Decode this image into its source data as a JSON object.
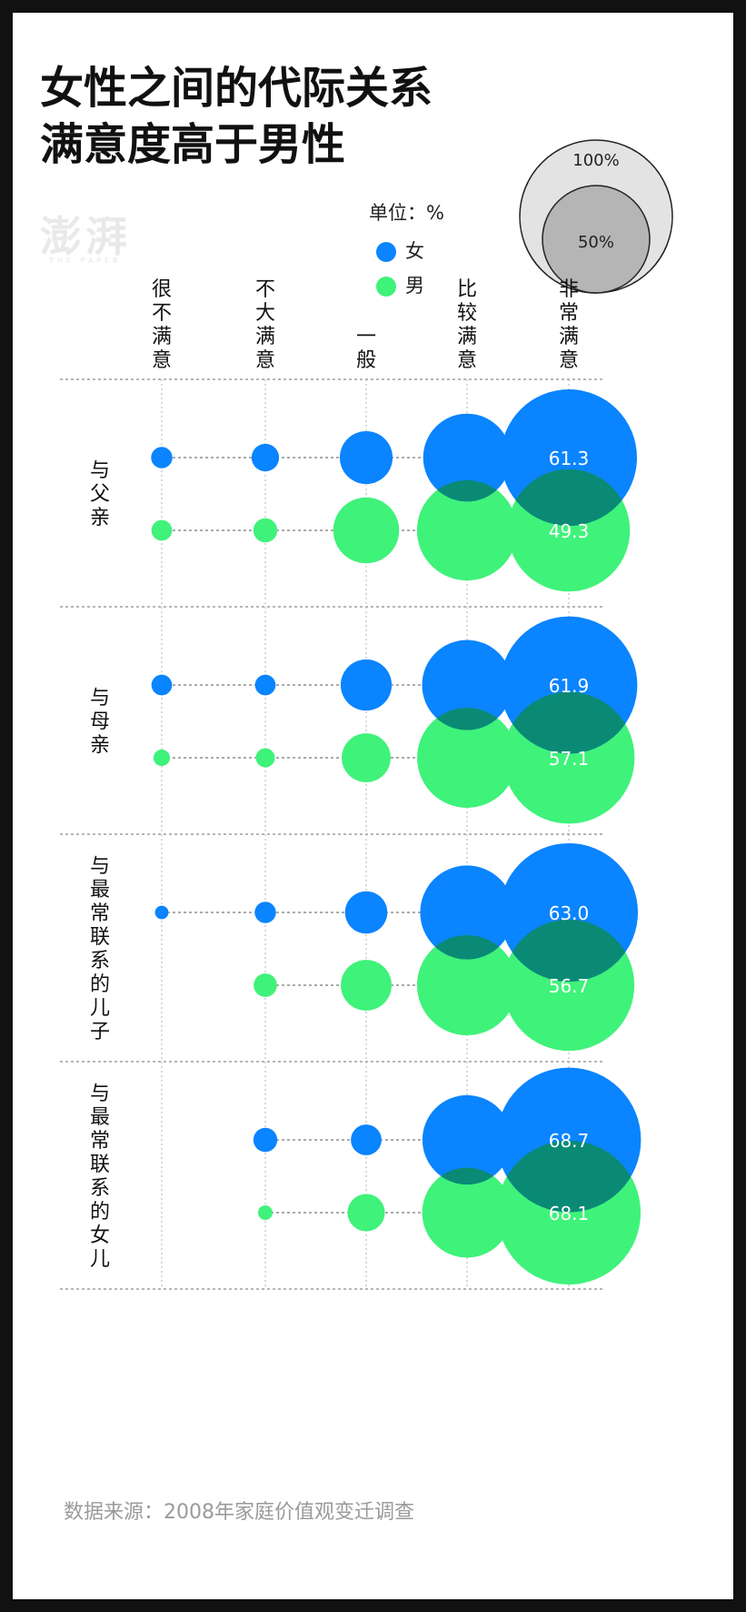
{
  "title": {
    "line1": "女性之间的代际关系",
    "line2": "满意度高于男性"
  },
  "watermark": "澎湃",
  "watermark_sub": "THE PAPER",
  "legend": {
    "unit_label": "单位：%",
    "female_label": "女",
    "male_label": "男"
  },
  "size_legend": {
    "large_label": "100%",
    "small_label": "50%"
  },
  "colors": {
    "female": "#0a84ff",
    "male": "#3ff27a",
    "overlap": "#0a8a74",
    "grid": "#8a8a8a",
    "label_text": "#ffffff"
  },
  "source": "数据来源：2008年家庭价值观变迁调查",
  "chart_data": {
    "type": "bubble",
    "categories": [
      "很不满意",
      "不大满意",
      "一般",
      "比较满意",
      "非常满意"
    ],
    "unit": "%",
    "groups": [
      {
        "label": "与父亲",
        "female": [
          1.5,
          2.5,
          9.2,
          25.4,
          61.3
        ],
        "male": [
          1.4,
          1.9,
          14.3,
          33.1,
          49.3
        ],
        "female_label": "61.3",
        "male_label": "49.3"
      },
      {
        "label": "与母亲",
        "female": [
          1.4,
          1.4,
          8.6,
          26.7,
          61.9
        ],
        "male": [
          0.9,
          1.2,
          7.9,
          32.9,
          57.1
        ],
        "female_label": "61.9",
        "male_label": "57.1"
      },
      {
        "label": "与最常联系的儿子",
        "female": [
          0.6,
          1.5,
          5.9,
          29.0,
          63.0
        ],
        "male": [
          0.0,
          1.8,
          8.5,
          33.0,
          56.7
        ],
        "female_label": "63.0",
        "male_label": "56.7"
      },
      {
        "label": "与最常联系的女儿",
        "female": [
          0.0,
          1.9,
          3.1,
          26.3,
          68.7
        ],
        "male": [
          0.0,
          0.7,
          4.6,
          26.6,
          68.1
        ],
        "female_label": "68.7",
        "male_label": "68.1"
      }
    ]
  }
}
